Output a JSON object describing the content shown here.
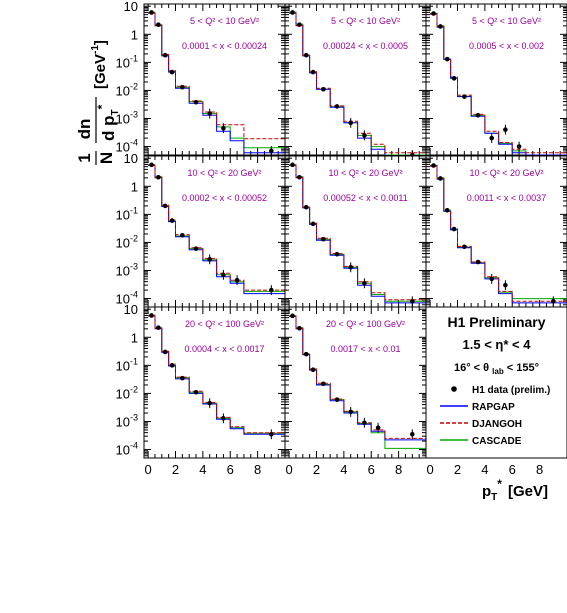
{
  "figure": {
    "y_axis_label": {
      "frac_num": "1",
      "frac_den": "N",
      "dn": "dn",
      "d": "d",
      "p": "p",
      "t": "T",
      "star": "*",
      "unit": "[GeV",
      "unit_exp": "-1",
      "unit_close": "]"
    },
    "x_axis_label": {
      "p": "p",
      "t": "T",
      "star": "*",
      "unit": "[GeV]"
    },
    "legend_panel": {
      "title": "H1 Preliminary",
      "eta_range": "1.5 < η* < 4",
      "theta_range": "16° < θ",
      "theta_sub": "lab",
      "theta_range_end": "< 155°",
      "entries": [
        {
          "label": "H1 data (prelim.)",
          "style": "marker",
          "color": "#000000"
        },
        {
          "label": "RAPGAP",
          "style": "solid",
          "color": "#0000ff"
        },
        {
          "label": "DJANGOH",
          "style": "dashed",
          "color": "#cc0000"
        },
        {
          "label": "CASCADE",
          "style": "solid",
          "color": "#00aa00"
        }
      ]
    }
  },
  "chart_data": {
    "type": "line",
    "description_units": "1/N dn/dpT* [GeV^-1] versus pT* [GeV]",
    "x_bin_edges": [
      0,
      0.5,
      1,
      1.5,
      2,
      3,
      4,
      5,
      6,
      7,
      8,
      10
    ],
    "x_centers": [
      0.25,
      0.75,
      1.25,
      1.75,
      2.5,
      3.5,
      4.5,
      5.5,
      6.5,
      7.5,
      9
    ],
    "xlim": [
      -0.3,
      10
    ],
    "ylim": [
      5e-05,
      12
    ],
    "y_scale": "log",
    "x_ticks": [
      "0",
      "2",
      "4",
      "6",
      "8"
    ],
    "y_ticks": [
      "10",
      "1",
      "10-1",
      "10-2",
      "10-3",
      "10-4"
    ],
    "panels": [
      {
        "q2_label": "5 < Q² < 10 GeV²",
        "x_label": "0.0001 < x < 0.00024",
        "data": [
          6.0,
          2.2,
          0.18,
          0.045,
          0.013,
          0.0038,
          0.0015,
          0.00045,
          null,
          null,
          7e-05
        ],
        "rapgap": [
          5.6,
          2.0,
          0.17,
          0.045,
          0.012,
          0.0035,
          0.0013,
          0.00035,
          0.00016,
          6e-05,
          6e-05
        ],
        "djangoh": [
          5.8,
          2.1,
          0.19,
          0.05,
          0.014,
          0.0042,
          0.0017,
          0.0006,
          0.0006,
          0.00019,
          0.00019
        ],
        "cascade": [
          6.1,
          2.2,
          0.18,
          0.047,
          0.013,
          0.004,
          0.0015,
          0.0005,
          0.0002,
          9e-05,
          9e-05
        ]
      },
      {
        "q2_label": "5 < Q² < 10 GeV²",
        "x_label": "0.00024 < x < 0.0005",
        "data": [
          6.0,
          2.2,
          0.18,
          0.045,
          0.011,
          0.0027,
          0.0007,
          0.00025,
          null,
          null,
          5e-05
        ],
        "rapgap": [
          5.6,
          2.0,
          0.17,
          0.042,
          0.011,
          0.0025,
          0.0007,
          0.0002,
          8e-05,
          4e-05,
          4e-05
        ],
        "djangoh": [
          5.8,
          2.1,
          0.18,
          0.046,
          0.012,
          0.0028,
          0.0008,
          0.0003,
          0.00012,
          6e-05,
          6e-05
        ],
        "cascade": [
          6.2,
          2.3,
          0.18,
          0.044,
          0.011,
          0.0026,
          0.0007,
          0.00025,
          0.0001,
          5e-05,
          5e-05
        ]
      },
      {
        "q2_label": "5 < Q² < 10 GeV²",
        "x_label": "0.0005 < x < 0.002",
        "data": [
          5.5,
          1.9,
          0.13,
          0.027,
          0.006,
          0.0013,
          0.0002,
          0.0004,
          0.0001,
          null,
          null
        ],
        "rapgap": [
          5.2,
          1.8,
          0.13,
          0.027,
          0.006,
          0.0012,
          0.0003,
          0.00012,
          6e-05,
          5e-05,
          5e-05
        ],
        "djangoh": [
          5.4,
          1.9,
          0.14,
          0.03,
          0.0068,
          0.0014,
          0.00035,
          0.00014,
          8e-05,
          6e-05,
          6e-05
        ],
        "cascade": [
          5.6,
          2.0,
          0.13,
          0.027,
          0.0062,
          0.0013,
          0.0003,
          0.00013,
          7e-05,
          5e-05,
          5e-05
        ]
      },
      {
        "q2_label": "10 < Q² < 20 GeV²",
        "x_label": "0.0002 < x < 0.00052",
        "data": [
          5.8,
          2.1,
          0.2,
          0.06,
          0.018,
          0.006,
          0.0025,
          0.0007,
          0.00045,
          null,
          0.0002
        ],
        "rapgap": [
          5.5,
          2.0,
          0.19,
          0.055,
          0.016,
          0.0055,
          0.0022,
          0.0006,
          0.00035,
          0.00015,
          0.00015
        ],
        "djangoh": [
          5.7,
          2.1,
          0.21,
          0.063,
          0.019,
          0.0065,
          0.0027,
          0.0008,
          0.00045,
          0.0002,
          0.0002
        ],
        "cascade": [
          5.9,
          2.2,
          0.2,
          0.058,
          0.017,
          0.006,
          0.0024,
          0.0007,
          0.0004,
          0.00018,
          0.00018
        ]
      },
      {
        "q2_label": "10 < Q² < 20 GeV²",
        "x_label": "0.00052 < x < 0.0011",
        "data": [
          5.8,
          2.1,
          0.18,
          0.046,
          0.013,
          0.0038,
          0.0013,
          0.00035,
          null,
          null,
          8e-05
        ],
        "rapgap": [
          5.5,
          2.0,
          0.17,
          0.044,
          0.012,
          0.0035,
          0.0012,
          0.0003,
          0.00012,
          7e-05,
          7e-05
        ],
        "djangoh": [
          5.7,
          2.1,
          0.18,
          0.048,
          0.014,
          0.004,
          0.0014,
          0.0004,
          0.00016,
          9e-05,
          9e-05
        ],
        "cascade": [
          5.9,
          2.2,
          0.18,
          0.046,
          0.013,
          0.0037,
          0.0013,
          0.00035,
          0.00014,
          8e-05,
          8e-05
        ]
      },
      {
        "q2_label": "10 < Q² < 20 GeV²",
        "x_label": "0.0011 < x < 0.0037",
        "data": [
          5.5,
          1.9,
          0.14,
          0.03,
          0.007,
          0.002,
          0.0005,
          0.0003,
          null,
          null,
          8e-05
        ],
        "rapgap": [
          5.2,
          1.8,
          0.13,
          0.028,
          0.0065,
          0.0018,
          0.0005,
          0.00015,
          7e-05,
          7e-05,
          7e-05
        ],
        "djangoh": [
          5.4,
          1.9,
          0.14,
          0.031,
          0.0072,
          0.002,
          0.0006,
          0.00018,
          8e-05,
          8e-05,
          8e-05
        ],
        "cascade": [
          5.6,
          2.0,
          0.14,
          0.029,
          0.0068,
          0.0019,
          0.00055,
          0.00017,
          0.0001,
          0.0001,
          0.0001
        ]
      },
      {
        "q2_label": "20 < Q² < 100 GeV²",
        "x_label": "0.0004 < x < 0.0017",
        "data": [
          6.0,
          2.2,
          0.3,
          0.1,
          0.035,
          0.011,
          0.0045,
          0.0013,
          null,
          null,
          0.00035
        ],
        "rapgap": [
          5.7,
          2.0,
          0.29,
          0.095,
          0.033,
          0.01,
          0.0042,
          0.0012,
          0.00055,
          0.00035,
          0.00035
        ],
        "djangoh": [
          5.9,
          2.1,
          0.32,
          0.11,
          0.038,
          0.012,
          0.0048,
          0.0014,
          0.00065,
          0.0004,
          0.0004
        ],
        "cascade": [
          6.1,
          2.2,
          0.31,
          0.1,
          0.036,
          0.011,
          0.0045,
          0.0013,
          0.0006,
          0.00038,
          0.00038
        ]
      },
      {
        "q2_label": "20 < Q² < 100 GeV²",
        "x_label": "0.0017 < x < 0.01",
        "data": [
          5.8,
          2.1,
          0.25,
          0.07,
          0.022,
          0.006,
          0.0022,
          0.0009,
          0.0006,
          null,
          0.00035
        ],
        "rapgap": [
          5.5,
          2.0,
          0.24,
          0.068,
          0.02,
          0.0055,
          0.002,
          0.0008,
          0.00045,
          0.00022,
          0.00022
        ],
        "djangoh": [
          5.7,
          2.1,
          0.26,
          0.074,
          0.023,
          0.0063,
          0.0023,
          0.0009,
          0.0005,
          0.00025,
          0.00025
        ],
        "cascade": [
          5.9,
          2.2,
          0.25,
          0.07,
          0.021,
          0.006,
          0.0022,
          0.00085,
          0.0004,
          0.00011,
          0.00011
        ]
      }
    ]
  },
  "colors": {
    "data": "#000000",
    "rapgap": "#0000ff",
    "djangoh": "#cc0000",
    "cascade": "#00aa00",
    "panel_text": "#990099"
  }
}
